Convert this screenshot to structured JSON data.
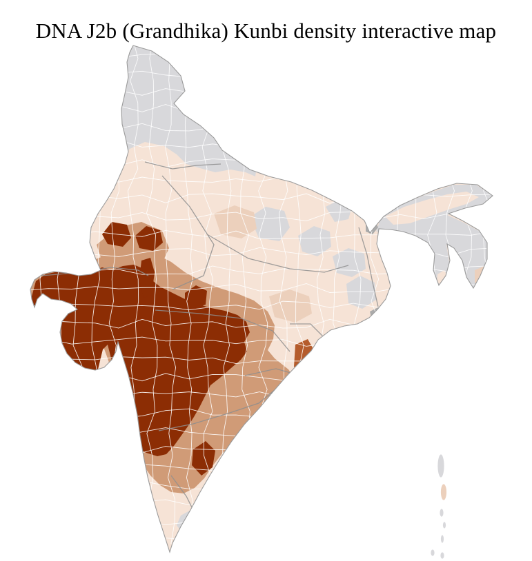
{
  "page": {
    "title": "DNA J2b (Grandhika) Kunbi density interactive map",
    "background": "#ffffff"
  },
  "map": {
    "kind": "choropleth",
    "region_shown": "India districts",
    "colors": {
      "no_data": "#d8d8db",
      "no_data_dark": "#ababab",
      "very_low": "#f6e3d6",
      "low": "#ecd0bc",
      "medium": "#d09b77",
      "high": "#b55c2c",
      "very_high": "#8c2d04",
      "district_border": "#ffffff",
      "state_border": "#8f8f8f",
      "outline": "#9a9a9a"
    },
    "zones": [
      {
        "name": "himalayan-north",
        "level": "no_data"
      },
      {
        "name": "northeast-states",
        "level": "no_data"
      },
      {
        "name": "assam-valley",
        "level": "very_low"
      },
      {
        "name": "uttar-pradesh-patch-1",
        "level": "no_data"
      },
      {
        "name": "uttar-pradesh-patch-2",
        "level": "no_data"
      },
      {
        "name": "uttar-pradesh-patch-3",
        "level": "no_data"
      },
      {
        "name": "bihar-patch",
        "level": "no_data"
      },
      {
        "name": "bengal-jharkhand-patch",
        "level": "no_data"
      },
      {
        "name": "sikkim-darjeeling",
        "level": "no_data_dark"
      },
      {
        "name": "kolkata-area",
        "level": "no_data_dark"
      },
      {
        "name": "gangetic-plain-base",
        "level": "very_low"
      },
      {
        "name": "south-rajasthan-belt",
        "level": "medium"
      },
      {
        "name": "deccan-fringe-belt",
        "level": "medium"
      },
      {
        "name": "gujarat-maharashtra-core",
        "level": "very_high"
      },
      {
        "name": "rajasthan-satellite-1",
        "level": "very_high"
      },
      {
        "name": "rajasthan-satellite-2",
        "level": "very_high"
      },
      {
        "name": "rajasthan-strip-satellite",
        "level": "very_high"
      },
      {
        "name": "madhya-pradesh-satellite",
        "level": "very_high"
      },
      {
        "name": "karnataka-satellite-1",
        "level": "very_high"
      },
      {
        "name": "karnataka-satellite-2",
        "level": "very_high"
      },
      {
        "name": "karnataka-satellite-3",
        "level": "very_high"
      },
      {
        "name": "odisha-coastal-district",
        "level": "high"
      },
      {
        "name": "tamil-nadu-patch-1",
        "level": "no_data"
      },
      {
        "name": "tamil-nadu-patch-2",
        "level": "no_data"
      },
      {
        "name": "andaman-nicobar-islands",
        "level": "no_data"
      }
    ]
  }
}
